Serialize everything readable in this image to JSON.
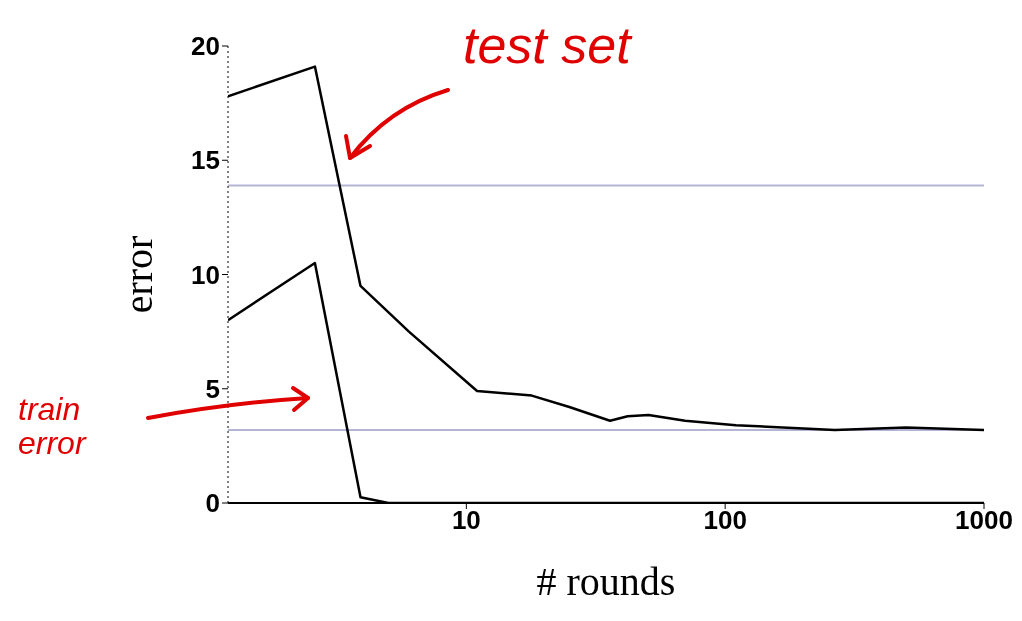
{
  "chart_data": {
    "type": "line",
    "xlabel": "# rounds",
    "ylabel": "error",
    "log": "x",
    "xlim": [
      1.2,
      1000
    ],
    "xticks": [
      10,
      100,
      1000
    ],
    "ylim": [
      0,
      20
    ],
    "yticks": [
      0,
      5,
      10,
      15,
      20
    ],
    "marker": "none",
    "line_style": "solid",
    "series": [
      {
        "color": "#000000",
        "x": [
          1.2,
          2.6,
          3.9,
          6,
          11,
          17.9,
          25,
          35.9,
          42,
          50.6,
          70,
          110,
          265,
          500,
          1000
        ],
        "values": [
          17.8,
          19.1,
          9.5,
          7.5,
          4.9,
          4.7,
          4.2,
          3.6,
          3.8,
          3.85,
          3.6,
          3.4,
          3.2,
          3.3,
          3.2
        ]
      },
      {
        "color": "#000000",
        "x": [
          1.2,
          2.6,
          3.9,
          5,
          10,
          100,
          1000
        ],
        "values": [
          8.0,
          10.5,
          0.25,
          0,
          0,
          0,
          0
        ]
      }
    ],
    "ref_lines": [
      {
        "axis": "y",
        "value": 13.9,
        "color": "#b4b4d4"
      },
      {
        "axis": "y",
        "value": 3.2,
        "color": "#b4b4d4"
      }
    ],
    "annotations": [
      "test set",
      "train error"
    ]
  }
}
